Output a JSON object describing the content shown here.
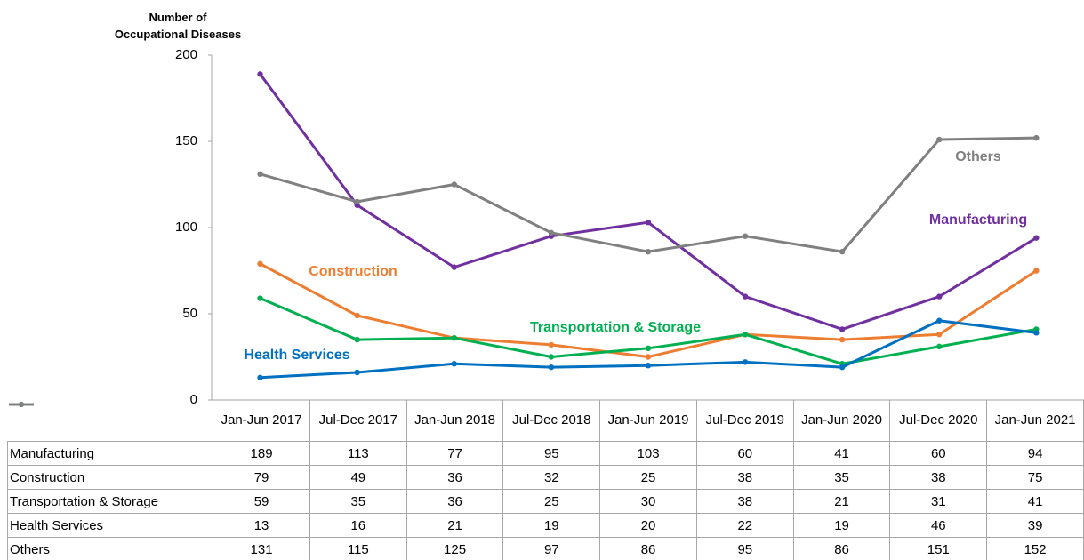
{
  "chart_data": {
    "type": "line",
    "y_label": "Number of Occupational Diseases",
    "categories": [
      "Jan-Jun 2017",
      "Jul-Dec 2017",
      "Jan-Jun 2018",
      "Jul-Dec 2018",
      "Jan-Jun 2019",
      "Jul-Dec 2019",
      "Jan-Jun 2020",
      "Jul-Dec 2020",
      "Jan-Jun 2021"
    ],
    "series": [
      {
        "name": "Manufacturing",
        "color": "#7030a0",
        "values": [
          189,
          113,
          77,
          95,
          103,
          60,
          41,
          60,
          94
        ]
      },
      {
        "name": "Construction",
        "color": "#ed7d31",
        "values": [
          79,
          49,
          36,
          32,
          25,
          38,
          35,
          38,
          75
        ]
      },
      {
        "name": "Transportation & Storage",
        "color": "#00b050",
        "values": [
          59,
          35,
          36,
          25,
          30,
          38,
          21,
          31,
          41
        ]
      },
      {
        "name": "Health Services",
        "color": "#0070c0",
        "values": [
          13,
          16,
          21,
          19,
          20,
          22,
          19,
          46,
          39
        ]
      },
      {
        "name": "Others",
        "color": "#808080",
        "values": [
          131,
          115,
          125,
          97,
          86,
          95,
          86,
          151,
          152
        ]
      }
    ],
    "ylim": [
      0,
      200
    ],
    "yticks": [
      0,
      50,
      100,
      150,
      200
    ],
    "grid": false,
    "data_table": true
  }
}
